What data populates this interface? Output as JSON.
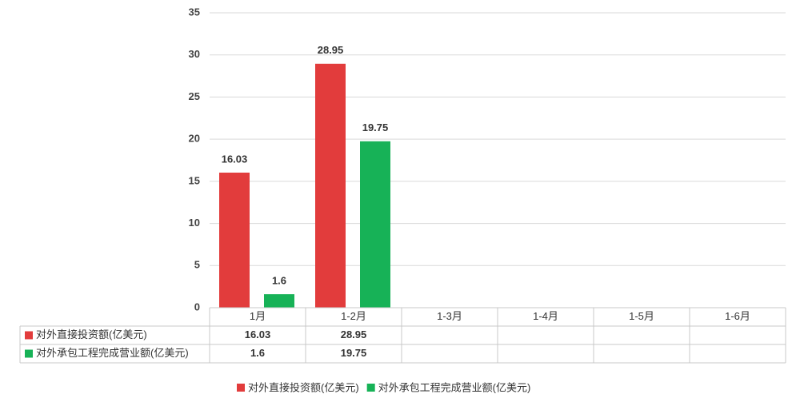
{
  "chart_data": {
    "type": "bar",
    "categories": [
      "1月",
      "1-2月",
      "1-3月",
      "1-4月",
      "1-5月",
      "1-6月"
    ],
    "series": [
      {
        "name": "对外直接投资额(亿美元)",
        "color": "#e23c3c",
        "values": [
          16.03,
          28.95,
          null,
          null,
          null,
          null
        ]
      },
      {
        "name": "对外承包工程完成营业额(亿美元)",
        "color": "#17b257",
        "values": [
          1.6,
          19.75,
          null,
          null,
          null,
          null
        ]
      }
    ],
    "ylim": [
      0,
      35
    ],
    "yticks": [
      0,
      5,
      10,
      15,
      20,
      25,
      30,
      35
    ],
    "grid": true,
    "legend": "bottom"
  }
}
